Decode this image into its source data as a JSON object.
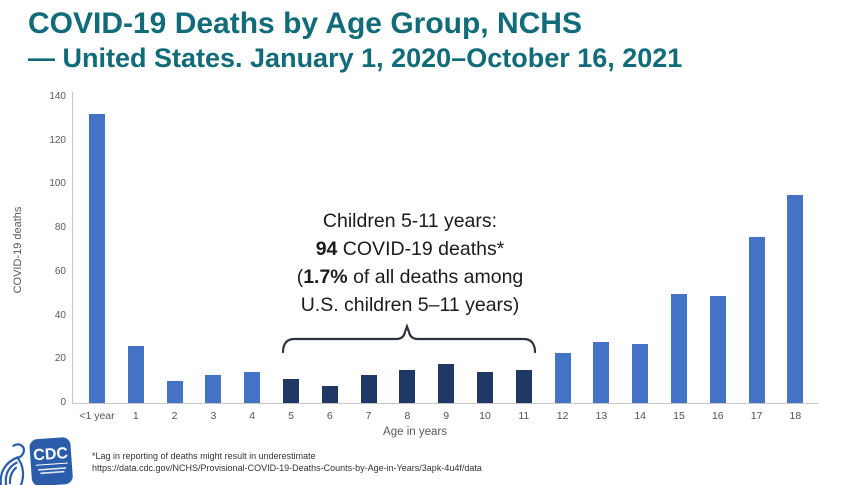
{
  "slide": {
    "title_line1": "COVID-19 Deaths by Age Group, NCHS",
    "title_line2": "— United States. January 1, 2020–October 16, 2021",
    "title_color": "#116b79"
  },
  "annotation": {
    "line1": "Children 5-11 years:",
    "line2_bold": "94",
    "line2_rest": " COVID-19 deaths*",
    "line3_pre": "(",
    "line3_bold": "1.7%",
    "line3_rest": " of all deaths among",
    "line4": "U.S. children 5–11 years)"
  },
  "footer": {
    "footnote_line1": "*Lag in reporting of deaths might result in underestimate",
    "footnote_line2": "https://data.cdc.gov/NCHS/Provisional-COVID-19-Deaths-Counts-by-Age-in-Years/3apk-4u4f/data",
    "logo_text": "CDC"
  },
  "chart_data": {
    "type": "bar",
    "title": "",
    "xlabel": "Age in years",
    "ylabel": "COVID-19 deaths",
    "categories": [
      "<1 year",
      "1",
      "2",
      "3",
      "4",
      "5",
      "6",
      "7",
      "8",
      "9",
      "10",
      "11",
      "12",
      "13",
      "14",
      "15",
      "16",
      "17",
      "18"
    ],
    "values": [
      132,
      26,
      10,
      13,
      14,
      11,
      8,
      13,
      15,
      18,
      14,
      15,
      23,
      28,
      27,
      50,
      49,
      76,
      95
    ],
    "ylim": [
      0,
      140
    ],
    "ytick_step": 20,
    "grid": false,
    "legend": "none",
    "colors": {
      "default": "#4472c4",
      "highlight": "#1f3864"
    },
    "highlight_group": {
      "from": "5",
      "to": "11",
      "note": "ages 5-11 highlighted dark, total 94 deaths"
    }
  }
}
